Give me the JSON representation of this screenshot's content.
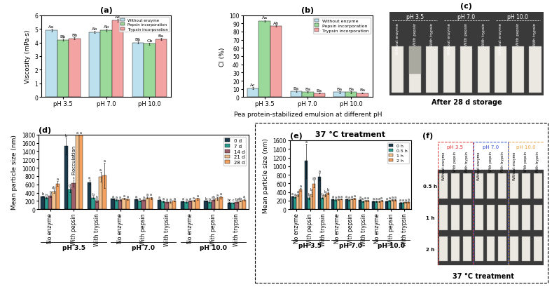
{
  "chart_data": [
    {
      "type": "bar",
      "title": "(a)",
      "y_label": "Viscosity (mPa·s)",
      "categories": [
        "pH 3.5",
        "pH 7.0",
        "pH 10.0"
      ],
      "ylim": [
        0,
        6
      ],
      "yticks": [
        0,
        1,
        2,
        3,
        4,
        5,
        6
      ],
      "legend": "upper right",
      "series": [
        {
          "name": "Without enzyme",
          "color": "#bde0ee",
          "values": [
            4.9,
            4.75,
            4.0
          ],
          "errors": [
            0.08,
            0.08,
            0.08
          ],
          "letters": [
            "Aa",
            "Ab",
            "Bb"
          ]
        },
        {
          "name": "Pepsin incorporation",
          "color": "#9ad99a",
          "values": [
            4.2,
            4.9,
            3.9
          ],
          "errors": [
            0.08,
            0.08,
            0.08
          ],
          "letters": [
            "Bb",
            "Ab",
            "Cb"
          ]
        },
        {
          "name": "Trypsin incorporation",
          "color": "#f4a3a3",
          "values": [
            4.3,
            5.6,
            4.25
          ],
          "errors": [
            0.08,
            0.1,
            0.08
          ],
          "letters": [
            "Bb",
            "Aa",
            "Ba"
          ]
        }
      ]
    },
    {
      "type": "bar",
      "title": "(b)",
      "y_label": "CI (%)",
      "x_label": "Pea protein-stabilized emulsion at different pH",
      "categories": [
        "pH 3.5",
        "pH 7.0",
        "pH 10.0"
      ],
      "ylim": [
        0,
        100
      ],
      "yticks": [
        0,
        10,
        20,
        30,
        40,
        50,
        60,
        70,
        80,
        90,
        100
      ],
      "legend": "upper right",
      "series": [
        {
          "name": "Without enzyme",
          "color": "#bde0ee",
          "values": [
            11,
            7,
            6
          ],
          "errors": [
            1,
            1,
            1
          ],
          "letters": [
            "Ac",
            "Ba",
            "Ba"
          ]
        },
        {
          "name": "Pepsin incorporation",
          "color": "#9ad99a",
          "values": [
            93,
            6,
            6
          ],
          "errors": [
            1,
            0.8,
            1
          ],
          "letters": [
            "Aa",
            "Ba",
            "Ba"
          ]
        },
        {
          "name": "Trypsin incorporation",
          "color": "#f4a3a3",
          "values": [
            87,
            5,
            5
          ],
          "errors": [
            0.8,
            0.6,
            0.8
          ],
          "letters": [
            "Ab",
            "Ba",
            "Ba"
          ]
        }
      ]
    },
    {
      "type": "bar",
      "title": "(d)",
      "y_label": "Mean particle size (nm)",
      "categories": [
        "No enzyme",
        "With pepsin",
        "With trypsin",
        "No enzyme",
        "With pepsin",
        "With trypsin",
        "No enzyme",
        "With pepsin",
        "With trypsin"
      ],
      "groups": [
        "pH 3.5",
        "pH 7.0",
        "pH 10.0"
      ],
      "annotations": [
        "Flocculation"
      ],
      "ylim": [
        0,
        1800
      ],
      "yticks": [
        0,
        200,
        400,
        600,
        800,
        1000,
        1200,
        1400,
        1600,
        1800
      ],
      "legend": "upper right",
      "series": [
        {
          "name": "0 d",
          "color": "#1b3a4b",
          "values": [
            310,
            1530,
            650,
            250,
            240,
            230,
            190,
            200,
            160
          ],
          "errors": [
            20,
            200,
            60,
            15,
            15,
            15,
            15,
            15,
            15
          ],
          "letters": [
            "b",
            "b",
            "a",
            "a",
            "a",
            "a",
            "a",
            "b",
            "bc"
          ]
        },
        {
          "name": "7 d",
          "color": "#2a9d8f",
          "values": [
            270,
            470,
            280,
            230,
            200,
            190,
            180,
            180,
            150
          ],
          "errors": [
            15,
            60,
            30,
            15,
            15,
            15,
            15,
            15,
            15
          ],
          "letters": [
            "b",
            "d",
            "b",
            "a",
            "a",
            "a",
            "a",
            "b",
            "c"
          ]
        },
        {
          "name": "14 d",
          "color": "#9e5f6a",
          "values": [
            330,
            630,
            210,
            220,
            230,
            180,
            200,
            220,
            170
          ],
          "errors": [
            30,
            80,
            30,
            15,
            15,
            15,
            15,
            15,
            15
          ],
          "letters": [
            "b",
            "c",
            "b",
            "a",
            "a",
            "a",
            "a",
            "ab",
            "bc"
          ]
        },
        {
          "name": "21 d",
          "color": "#f2c28f",
          "values": [
            430,
            1800,
            780,
            260,
            280,
            170,
            210,
            260,
            200
          ],
          "errors": [
            40,
            0,
            120,
            15,
            30,
            15,
            15,
            30,
            15
          ],
          "letters": [
            "ab",
            "a",
            "a",
            "a",
            "a",
            "a",
            "a",
            "a",
            "ab"
          ]
        },
        {
          "name": "28 d",
          "color": "#f4a261",
          "values": [
            620,
            1800,
            820,
            240,
            270,
            200,
            250,
            290,
            230
          ],
          "errors": [
            60,
            0,
            300,
            15,
            30,
            15,
            30,
            30,
            30
          ],
          "letters": [
            "a",
            "a",
            "a",
            "a",
            "a",
            "a",
            "a",
            "a",
            "a"
          ]
        }
      ]
    },
    {
      "type": "bar",
      "title": "(e)",
      "subtitle": "37 °C treatment",
      "y_label": "Mean particle size (nm)",
      "categories": [
        "No enzyme",
        "With pepsin",
        "With trypsin",
        "No enzyme",
        "With pepsin",
        "With trypsin",
        "No enzyme",
        "With pepsin",
        "With trypsin"
      ],
      "groups": [
        "pH 3.5",
        "pH 7.0",
        "pH 10.0"
      ],
      "ylim": [
        0,
        1600
      ],
      "yticks": [
        0,
        200,
        400,
        600,
        800,
        1000,
        1200,
        1400,
        1600
      ],
      "legend": "upper right",
      "series": [
        {
          "name": "0 h",
          "color": "#1b3a4b",
          "values": [
            300,
            1120,
            750,
            230,
            240,
            220,
            180,
            190,
            150
          ],
          "errors": [
            20,
            400,
            80,
            15,
            15,
            15,
            15,
            15,
            15
          ],
          "letters": [
            "a",
            "a",
            "a",
            "a",
            "a",
            "a",
            "a",
            "a",
            "a"
          ]
        },
        {
          "name": "0.5 h",
          "color": "#2a9d8f",
          "values": [
            280,
            260,
            270,
            220,
            220,
            190,
            190,
            200,
            150
          ],
          "errors": [
            20,
            30,
            20,
            15,
            15,
            15,
            15,
            15,
            15
          ],
          "letters": [
            "a",
            "b",
            "b",
            "a",
            "a",
            "a",
            "a",
            "a",
            "a"
          ]
        },
        {
          "name": "1 h",
          "color": "#f2c28f",
          "values": [
            330,
            350,
            330,
            230,
            240,
            200,
            190,
            210,
            160
          ],
          "errors": [
            30,
            60,
            40,
            15,
            15,
            15,
            15,
            15,
            15
          ],
          "letters": [
            "a",
            "b",
            "b",
            "a",
            "a",
            "a",
            "a",
            "a",
            "a"
          ]
        },
        {
          "name": "2 h",
          "color": "#f4a261",
          "values": [
            460,
            590,
            380,
            240,
            250,
            200,
            200,
            220,
            170
          ],
          "errors": [
            40,
            80,
            30,
            15,
            15,
            15,
            15,
            15,
            15
          ],
          "letters": [
            "a",
            "ab",
            "b",
            "a",
            "a",
            "a",
            "a",
            "a",
            "a"
          ]
        }
      ]
    }
  ],
  "photos": [
    {
      "title": "(c)",
      "caption": "After 28 d storage",
      "groups": [
        "pH 3.5",
        "pH 7.0",
        "pH 10.0"
      ],
      "samples": [
        "Without enzyme",
        "With pepsin",
        "With trypsin"
      ]
    },
    {
      "title": "(f)",
      "caption": "37 °C treatment",
      "groups": [
        "pH 3.5",
        "pH 7.0",
        "pH 10.0"
      ],
      "samples": [
        "Without enzyme",
        "With pepsin",
        "With trypsin"
      ],
      "rows": [
        "0.5 h",
        "1 h",
        "2 h"
      ]
    }
  ]
}
